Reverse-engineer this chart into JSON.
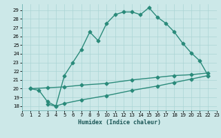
{
  "line1_x": [
    1,
    2,
    3,
    4,
    5,
    6,
    7,
    8,
    9,
    10,
    11,
    12,
    13,
    14,
    15,
    16,
    17,
    18,
    19,
    20,
    21,
    22
  ],
  "line1_y": [
    20.0,
    19.8,
    18.5,
    18.0,
    21.5,
    23.0,
    24.5,
    26.5,
    25.5,
    27.5,
    28.5,
    28.8,
    28.8,
    28.5,
    29.3,
    28.2,
    27.5,
    26.5,
    25.2,
    24.1,
    23.2,
    21.5
  ],
  "line2_x": [
    1,
    3,
    5,
    7,
    10,
    13,
    16,
    18,
    20,
    22
  ],
  "line2_y": [
    20.0,
    20.1,
    20.2,
    20.4,
    20.6,
    21.0,
    21.3,
    21.5,
    21.6,
    21.8
  ],
  "line3_x": [
    3,
    4,
    5,
    7,
    10,
    13,
    16,
    18,
    20,
    22
  ],
  "line3_y": [
    18.2,
    18.0,
    18.3,
    18.7,
    19.2,
    19.8,
    20.3,
    20.7,
    21.1,
    21.5
  ],
  "color": "#2a8a7a",
  "bg_color": "#cce8e8",
  "grid_color": "#aad4d4",
  "xlabel": "Humidex (Indice chaleur)",
  "xlim": [
    0,
    23
  ],
  "ylim": [
    17.5,
    29.7
  ],
  "yticks": [
    18,
    19,
    20,
    21,
    22,
    23,
    24,
    25,
    26,
    27,
    28,
    29
  ],
  "xticks": [
    0,
    1,
    2,
    3,
    4,
    5,
    6,
    7,
    8,
    9,
    10,
    11,
    12,
    13,
    14,
    15,
    16,
    17,
    18,
    19,
    20,
    21,
    22,
    23
  ],
  "marker": "D",
  "markersize": 2.5,
  "linewidth": 1.0
}
